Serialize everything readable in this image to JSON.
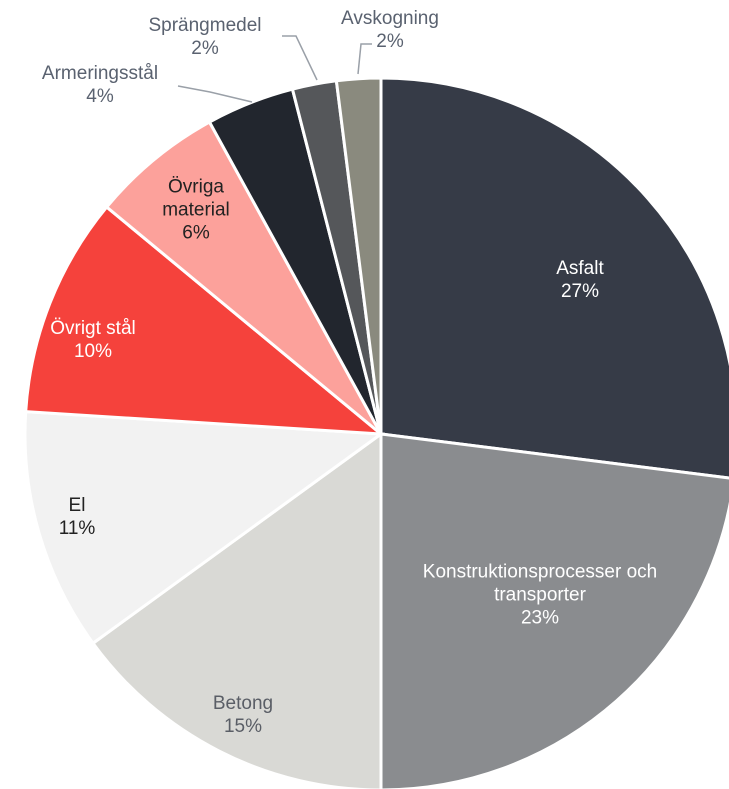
{
  "chart_data": {
    "type": "pie",
    "categories": [
      "Asfalt",
      "Konstruktionsprocesser och transporter",
      "Betong",
      "El",
      "Övrigt stål",
      "Övriga material",
      "Armeringsstål",
      "Sprängmedel",
      "Avskogning"
    ],
    "values": [
      27,
      23,
      15,
      11,
      10,
      6,
      4,
      2,
      2
    ],
    "value_labels": [
      "27%",
      "23%",
      "15%",
      "11%",
      "10%",
      "6%",
      "4%",
      "2%",
      "2%"
    ],
    "colors": [
      "#363b47",
      "#8a8c8f",
      "#d9d9d5",
      "#f2f2f2",
      "#f5423c",
      "#fca19b",
      "#22262e",
      "#55575a",
      "#8a8a7e"
    ]
  }
}
